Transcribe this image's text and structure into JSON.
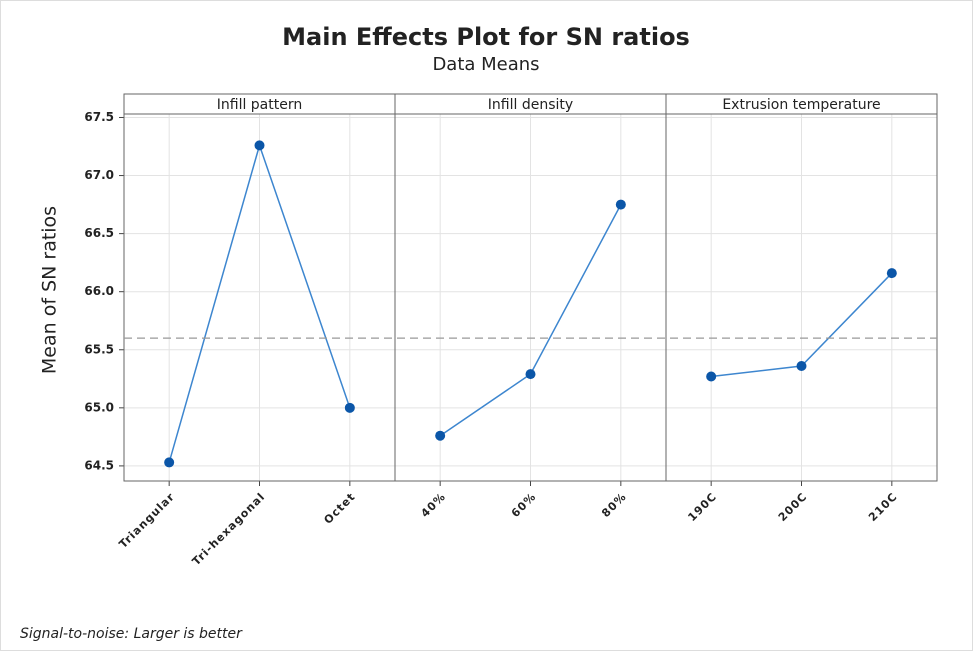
{
  "chart_data": {
    "type": "line",
    "title": "Main Effects Plot for SN ratios",
    "subtitle": "Data Means",
    "ylabel": "Mean of SN ratios",
    "ylim": [
      64.37,
      67.53
    ],
    "yticks": [
      64.5,
      {
        "value": 65,
        "label": "65.0"
      },
      65.5,
      {
        "value": 66,
        "label": "66.0"
      },
      66.5,
      {
        "value": 67,
        "label": "67.0"
      },
      67.5
    ],
    "grid": true,
    "reference_line": 65.6,
    "color": "#0b56a8",
    "line_color": "#3d86cf",
    "panels": [
      {
        "name": "Infill pattern",
        "categories": [
          "Triangular",
          "Tri-hexagonal",
          "Octet"
        ],
        "values": [
          64.53,
          67.26,
          65.0
        ]
      },
      {
        "name": "Infill density",
        "categories": [
          "40%",
          "60%",
          "80%"
        ],
        "values": [
          64.76,
          65.29,
          66.75
        ]
      },
      {
        "name": "Extrusion temperature",
        "categories": [
          "190C",
          "200C",
          "210C"
        ],
        "values": [
          65.27,
          65.36,
          66.16
        ]
      }
    ],
    "footnote": "Signal-to-noise: Larger is better"
  }
}
